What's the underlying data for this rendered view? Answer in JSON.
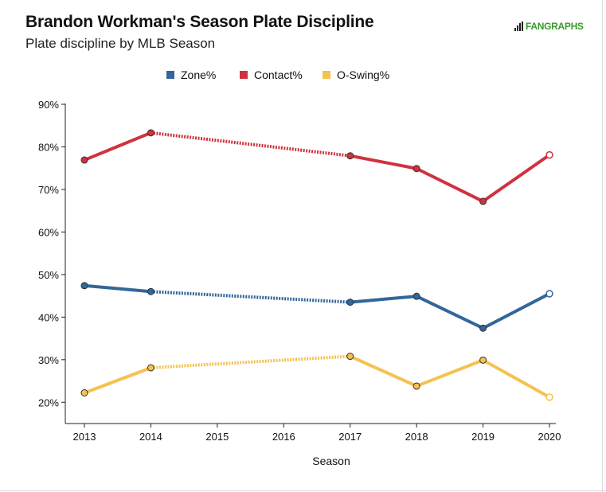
{
  "title": "Brandon Workman's Season Plate Discipline",
  "subtitle": "Plate discipline by MLB Season",
  "brand": {
    "text": "FANGRAPHS",
    "color": "#3a9a2d"
  },
  "chart_data": {
    "type": "line",
    "title": "Brandon Workman's Season Plate Discipline",
    "subtitle": "Plate discipline by MLB Season",
    "xlabel": "Season",
    "ylabel": "",
    "x": [
      2013,
      2014,
      2015,
      2016,
      2017,
      2018,
      2019,
      2020
    ],
    "xlim": [
      2013,
      2020
    ],
    "ylim": [
      15,
      90
    ],
    "yticks": [
      20,
      30,
      40,
      50,
      60,
      70,
      80,
      90
    ],
    "ytick_labels": [
      "20%",
      "30%",
      "40%",
      "50%",
      "60%",
      "70%",
      "80%",
      "90%"
    ],
    "xtick_labels": [
      "2013",
      "2014",
      "2015",
      "2016",
      "2017",
      "2018",
      "2019",
      "2020"
    ],
    "grid": false,
    "legend_position": "top-center",
    "gap_segments": [
      [
        2014,
        2017
      ]
    ],
    "series": [
      {
        "name": "Zone%",
        "color": "#336699",
        "points": [
          [
            2013,
            47.4
          ],
          [
            2014,
            46.0
          ],
          [
            2017,
            43.5
          ],
          [
            2018,
            44.9
          ],
          [
            2019,
            37.4
          ],
          [
            2020,
            45.5
          ]
        ]
      },
      {
        "name": "Contact%",
        "color": "#d0323f",
        "points": [
          [
            2013,
            76.9
          ],
          [
            2014,
            83.3
          ],
          [
            2017,
            77.9
          ],
          [
            2018,
            74.9
          ],
          [
            2019,
            67.2
          ],
          [
            2020,
            78.1
          ]
        ]
      },
      {
        "name": "O-Swing%",
        "color": "#f5c24f",
        "points": [
          [
            2013,
            22.2
          ],
          [
            2014,
            28.1
          ],
          [
            2017,
            30.8
          ],
          [
            2018,
            23.8
          ],
          [
            2019,
            29.9
          ],
          [
            2020,
            21.2
          ]
        ]
      }
    ]
  }
}
